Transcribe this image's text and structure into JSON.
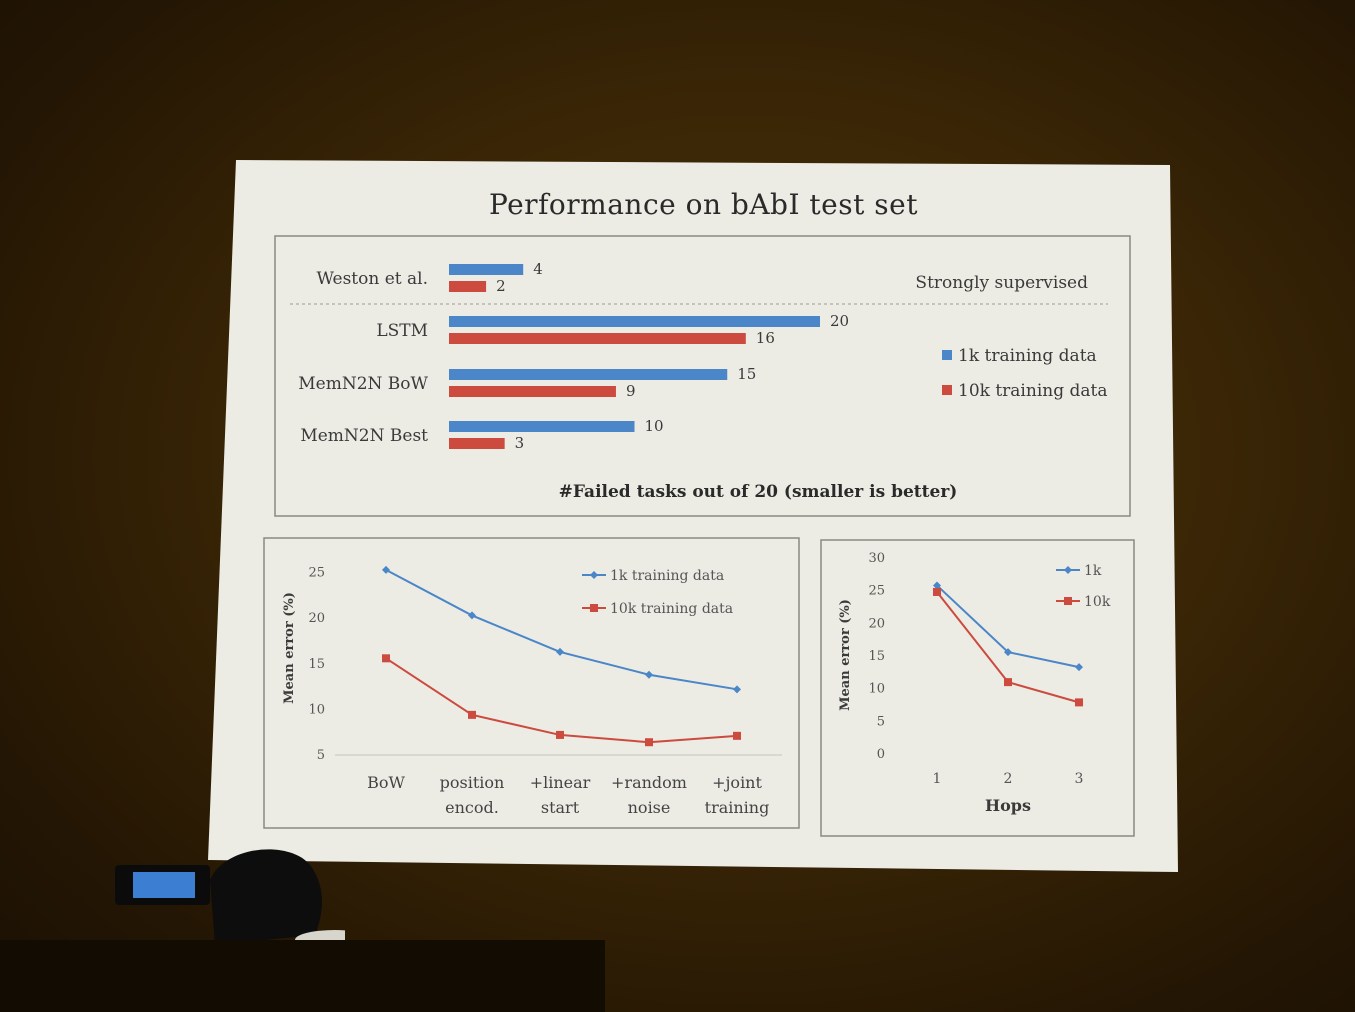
{
  "slide": {
    "title": "Performance on bAbI test set"
  },
  "colors": {
    "blue": "#4a86c8",
    "red": "#cc4a3e",
    "screen": "#ecece4"
  },
  "chart_data": [
    {
      "type": "bar",
      "orientation": "horizontal",
      "categories": [
        "Weston et al.",
        "LSTM",
        "MemN2N BoW",
        "MemN2N Best"
      ],
      "series": [
        {
          "name": "1k training data",
          "values": [
            4,
            20,
            15,
            10
          ]
        },
        {
          "name": "10k training data",
          "values": [
            2,
            16,
            9,
            3
          ]
        }
      ],
      "annotation": "Strongly supervised",
      "xlabel": "#Failed tasks out of 20 (smaller is better)",
      "xlim": [
        0,
        20
      ],
      "legend": "right"
    },
    {
      "type": "line",
      "categories": [
        [
          "BoW"
        ],
        [
          "position",
          "encod."
        ],
        [
          "+linear",
          "start"
        ],
        [
          "+random",
          "noise"
        ],
        [
          "+joint",
          "training"
        ]
      ],
      "series": [
        {
          "name": "1k training data",
          "values": [
            25.3,
            20.3,
            16.3,
            13.8,
            12.2
          ]
        },
        {
          "name": "10k training data",
          "values": [
            15.6,
            9.4,
            7.2,
            6.4,
            7.1
          ]
        }
      ],
      "ylabel": "Mean error (%)",
      "yticks": [
        5,
        10,
        15,
        20,
        25
      ],
      "ylim": [
        5,
        27
      ],
      "legend": "top-right"
    },
    {
      "type": "line",
      "categories": [
        "1",
        "2",
        "3"
      ],
      "series": [
        {
          "name": "1k",
          "values": [
            25.8,
            15.6,
            13.3
          ]
        },
        {
          "name": "10k",
          "values": [
            24.8,
            11.0,
            7.9
          ]
        }
      ],
      "xlabel": "Hops",
      "ylabel": "Mean error (%)",
      "yticks": [
        0,
        5,
        10,
        15,
        20,
        25,
        30
      ],
      "ylim": [
        0,
        30
      ],
      "legend": "top-right"
    }
  ]
}
